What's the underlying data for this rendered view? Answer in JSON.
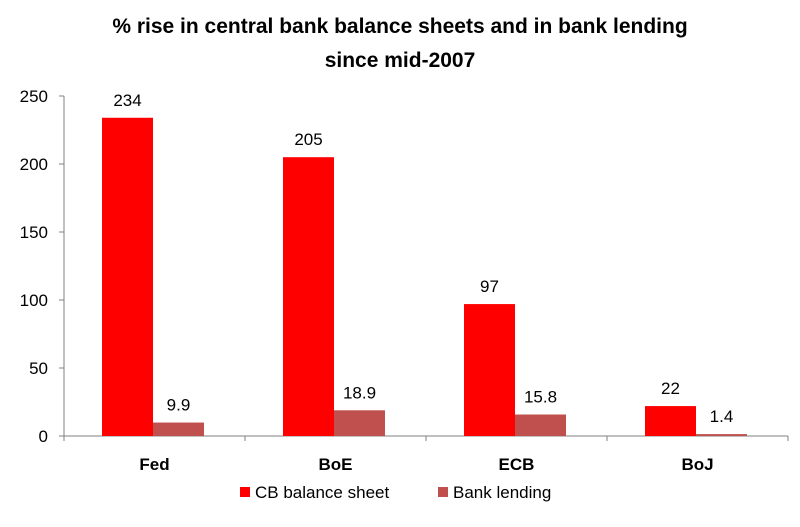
{
  "chart_data": {
    "type": "bar",
    "title_line1": "% rise in central bank balance sheets and in bank lending",
    "title_line2": "since mid-2007",
    "categories": [
      "Fed",
      "BoE",
      "ECB",
      "BoJ"
    ],
    "series": [
      {
        "name": "CB balance sheet",
        "color": "#ff0000",
        "values": [
          234,
          205,
          97,
          22
        ],
        "labels": [
          "234",
          "205",
          "97",
          "22"
        ]
      },
      {
        "name": "Bank lending",
        "color": "#c0504d",
        "values": [
          9.9,
          18.9,
          15.8,
          1.4
        ],
        "labels": [
          "9.9",
          "18.9",
          "15.8",
          "1.4"
        ]
      }
    ],
    "yticks": [
      "0",
      "50",
      "100",
      "150",
      "200",
      "250"
    ],
    "ylim": [
      0,
      250
    ],
    "grid": false,
    "legend_position": "bottom"
  }
}
